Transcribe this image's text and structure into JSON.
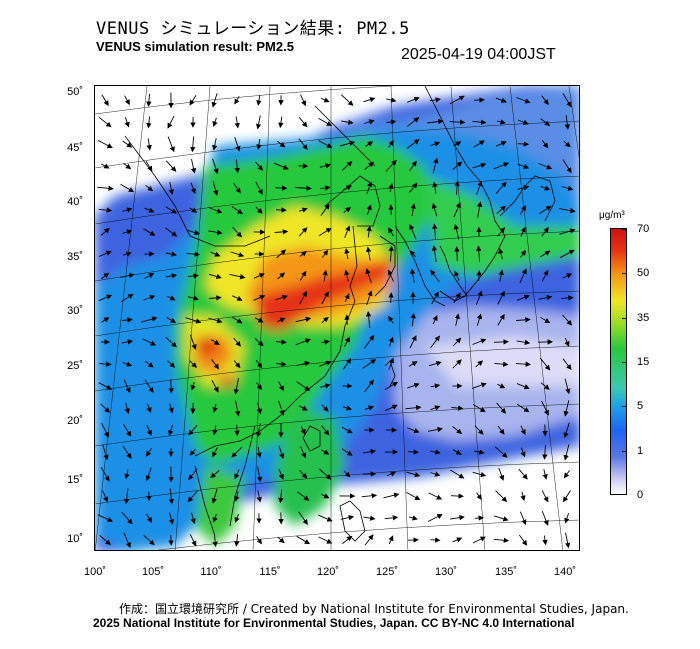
{
  "title_ja": "VENUS シミュレーション結果: PM2.5",
  "title_en": "VENUS simulation result: PM2.5",
  "timestamp": "2025-04-19 04:00JST",
  "lat_ticks": [
    "50˚",
    "45˚",
    "40˚",
    "35˚",
    "30˚",
    "25˚",
    "20˚",
    "15˚",
    "10˚"
  ],
  "lon_ticks": [
    "100˚",
    "105˚",
    "110˚",
    "115˚",
    "120˚",
    "125˚",
    "130˚",
    "135˚",
    "140˚"
  ],
  "colorbar": {
    "unit": "μg/m³",
    "labels": [
      "70",
      "50",
      "35",
      "15",
      "5",
      "1",
      "0"
    ],
    "colors": [
      "#ffffff",
      "#c8c8f0",
      "#1e64f0",
      "#1ea0e6",
      "#28c83c",
      "#f0e628",
      "#e63214"
    ]
  },
  "credit_line1": "作成：国立環境研究所 / Created by National Institute for Environmental Studies, Japan.",
  "credit_line2": "2025 National Institute for Environmental Studies, Japan. CC BY-NC 4.0 International"
}
